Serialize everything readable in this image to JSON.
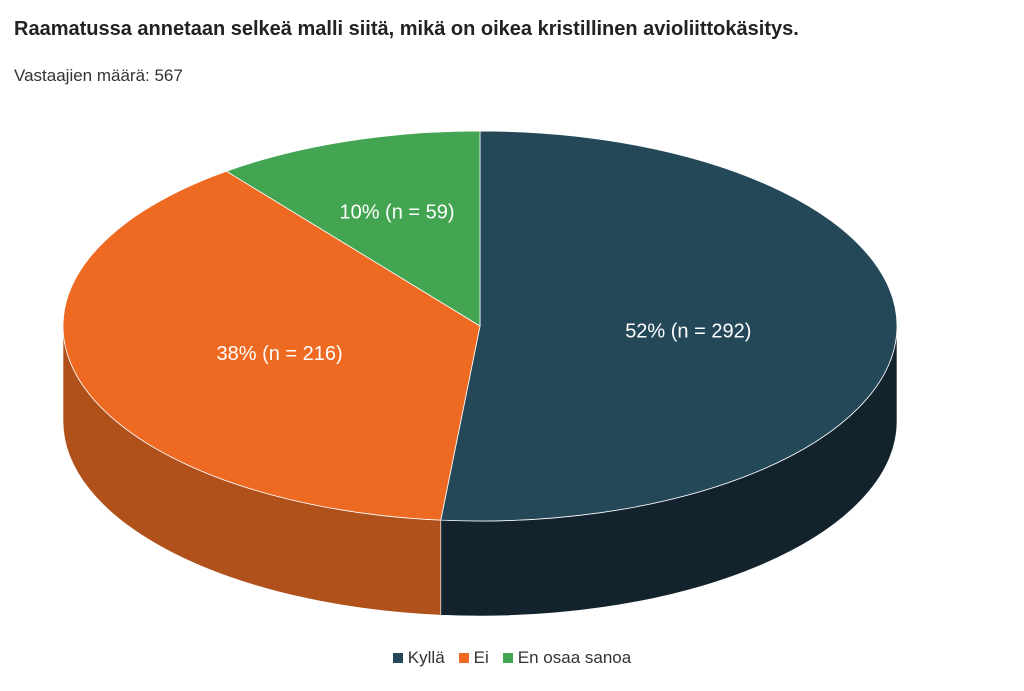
{
  "chart_data": {
    "type": "pie",
    "title": "Raamatussa annetaan selkeä malli siitä, mikä on oikea kristillinen avioliittokäsitys.",
    "subtitle": "Vastaajien määrä: 567",
    "three_d": true,
    "legend_position": "bottom",
    "slices": [
      {
        "name": "Kyllä",
        "value": 292,
        "percent": 52,
        "label": "52% (n = 292)",
        "color": "#244858",
        "side_color": "#13232d"
      },
      {
        "name": "Ei",
        "value": 216,
        "percent": 38,
        "label": "38% (n = 216)",
        "color": "#ee6a23",
        "side_color": "#b0501a"
      },
      {
        "name": "En osaa sanoa",
        "value": 59,
        "percent": 10,
        "label": "10% (n = 59)",
        "color": "#43a552",
        "side_color": "#2e7a3b"
      }
    ]
  }
}
